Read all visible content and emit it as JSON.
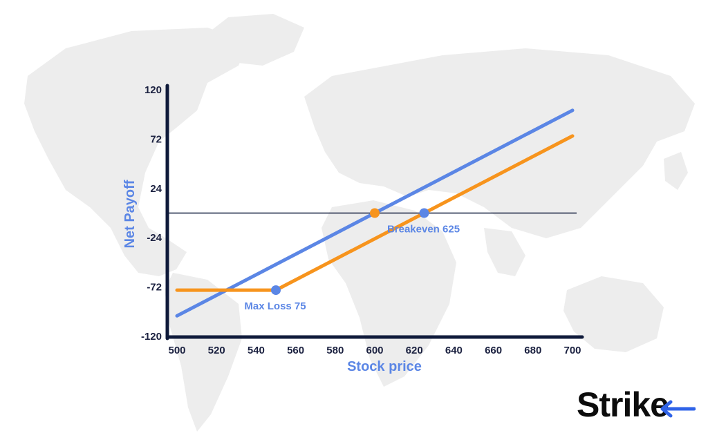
{
  "colors": {
    "map": "#ededed",
    "axis": "#0f1a3a",
    "blue": "#5b86e5",
    "orange": "#f7941d",
    "tick_text": "#1b2140",
    "brand": "#0c0c0c",
    "brand_arrow": "#2f63e8"
  },
  "brand": {
    "text": "Strike",
    "icon": "left-arrow-icon"
  },
  "chart_data": {
    "type": "line",
    "xlabel": "Stock price",
    "ylabel": "Net Payoff",
    "xlim": [
      500,
      700
    ],
    "ylim": [
      -120,
      120
    ],
    "x_ticks": [
      500,
      520,
      540,
      560,
      580,
      600,
      620,
      640,
      660,
      680,
      700
    ],
    "y_ticks": [
      -120,
      -72,
      -24,
      24,
      72,
      120
    ],
    "zero_line": 0,
    "series": [
      {
        "color_key": "blue",
        "points": [
          [
            500,
            -100
          ],
          [
            700,
            100
          ]
        ]
      },
      {
        "color_key": "orange",
        "points": [
          [
            500,
            -75
          ],
          [
            550,
            -75
          ],
          [
            700,
            75
          ]
        ]
      }
    ],
    "markers": [
      {
        "x": 550,
        "y": -75,
        "color_key": "blue"
      },
      {
        "x": 600,
        "y": 0,
        "color_key": "orange"
      },
      {
        "x": 625,
        "y": 0,
        "color_key": "blue"
      }
    ],
    "annotations": [
      {
        "text": "Max Loss 75",
        "x": 550,
        "y": -75
      },
      {
        "text": "Breakeven 625",
        "x": 625,
        "y": 0
      }
    ]
  }
}
